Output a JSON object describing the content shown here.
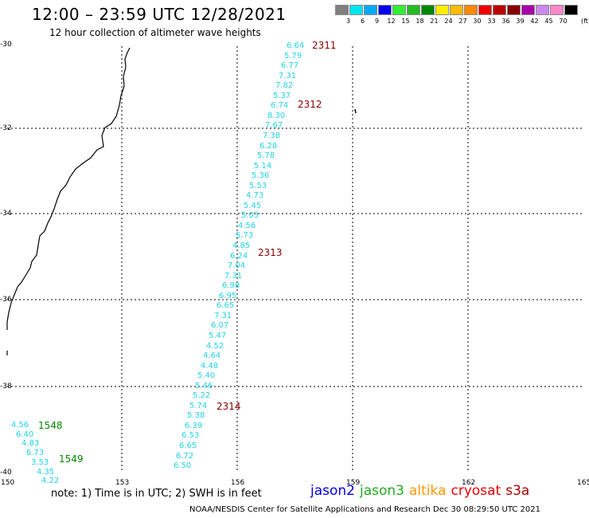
{
  "header": {
    "title": "12:00 – 23:59 UTC 12/28/2021",
    "subtitle": "12 hour collection of altimeter wave heights"
  },
  "color_scale": {
    "unit": "(ft)",
    "swatches": [
      {
        "color": "#7f7f7f",
        "label": "3"
      },
      {
        "color": "#00e5ee",
        "label": "6"
      },
      {
        "color": "#00aaff",
        "label": "9"
      },
      {
        "color": "#0000ee",
        "label": "12"
      },
      {
        "color": "#33ee33",
        "label": "15"
      },
      {
        "color": "#22bb22",
        "label": "18"
      },
      {
        "color": "#008800",
        "label": "21"
      },
      {
        "color": "#ffee00",
        "label": "24"
      },
      {
        "color": "#ffbb00",
        "label": "27"
      },
      {
        "color": "#ff8800",
        "label": "30"
      },
      {
        "color": "#ee0000",
        "label": "33"
      },
      {
        "color": "#bb0000",
        "label": "36"
      },
      {
        "color": "#880000",
        "label": "39"
      },
      {
        "color": "#aa00aa",
        "label": "42"
      },
      {
        "color": "#cc88ee",
        "label": "45"
      },
      {
        "color": "#ff88cc",
        "label": "70"
      },
      {
        "color": "#000000",
        "label": ""
      }
    ]
  },
  "axes": {
    "lat_labels": [
      "-30",
      "-32",
      "-34",
      "-36",
      "-38",
      "-40"
    ],
    "lon_labels": [
      "150",
      "153",
      "156",
      "159",
      "162",
      "165"
    ]
  },
  "tracks": {
    "main": {
      "color": "#22d3e6",
      "values": [
        "6.64",
        "5.79",
        "6.77",
        "7.31",
        "7.82",
        "5.37",
        "6.74",
        "8.30",
        "7.67",
        "7.38",
        "6.28",
        "5.78",
        "5.14",
        "5.36",
        "5.53",
        "4.73",
        "5.45",
        "5.03",
        "4.56",
        "5.73",
        "4.85",
        "6.24",
        "7.04",
        "7.31",
        "6.98",
        "6.95",
        "6.65",
        "7.31",
        "6.07",
        "5.47",
        "4.52",
        "4.64",
        "4.48",
        "5.40",
        "5.46",
        "5.22",
        "5.74",
        "5.38",
        "6.39",
        "6.53",
        "6.65",
        "6.72",
        "6.50"
      ]
    },
    "small": {
      "color": "#22d3e6",
      "values": [
        "4.56",
        "6.40",
        "4.83",
        "6.73",
        "3.53",
        "4.35",
        "4.22"
      ]
    }
  },
  "time_labels": [
    {
      "text": "2311",
      "color": "#880000"
    },
    {
      "text": "2312",
      "color": "#880000"
    },
    {
      "text": "2313",
      "color": "#880000"
    },
    {
      "text": "2314",
      "color": "#880000"
    },
    {
      "text": "1548",
      "color": "#008800"
    },
    {
      "text": "1549",
      "color": "#008800"
    }
  ],
  "note": "note: 1) Time is in UTC; 2) SWH is in feet",
  "legend": [
    {
      "name": "jason2",
      "color": "#0000ee"
    },
    {
      "name": "jason3",
      "color": "#22aa22"
    },
    {
      "name": "altika",
      "color": "#ff9900"
    },
    {
      "name": "cryosat",
      "color": "#ee0000"
    },
    {
      "name": "s3a",
      "color": "#aa0000"
    }
  ],
  "footer": "NOAA/NESDIS Center for Satellite Applications and Research    Dec 30 08:29:50 UTC 2021"
}
